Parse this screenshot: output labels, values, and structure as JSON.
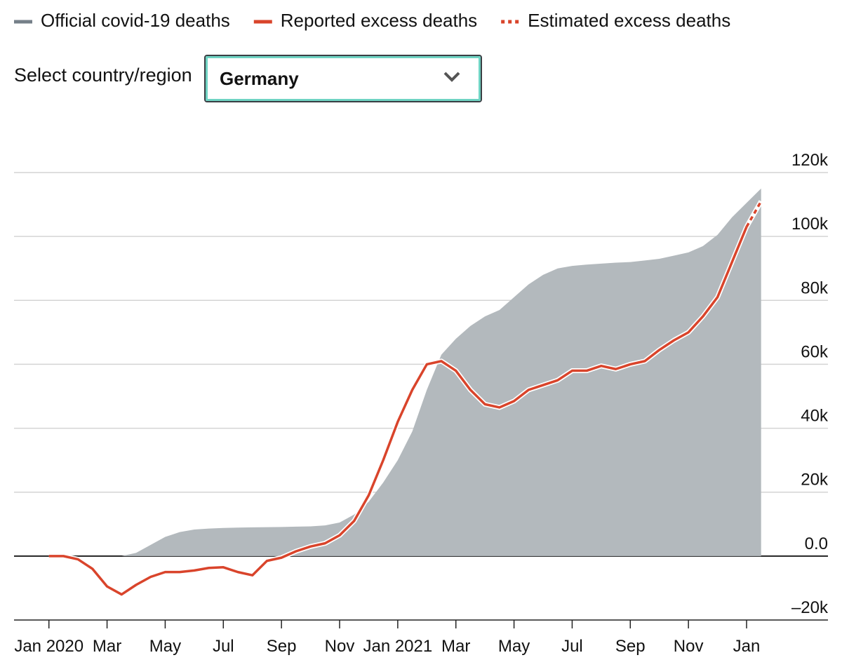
{
  "chart_data": {
    "type": "area-line",
    "select_label": "Select country/region",
    "select_value": "Germany",
    "x": [
      0,
      0.5,
      1,
      1.5,
      2,
      2.5,
      3,
      3.5,
      4,
      4.5,
      5,
      5.5,
      6,
      6.5,
      7,
      7.5,
      8,
      8.5,
      9,
      9.5,
      10,
      10.5,
      11,
      11.5,
      12,
      12.5,
      13,
      13.5,
      14,
      14.5,
      15,
      15.5,
      16,
      16.5,
      17,
      17.5,
      18,
      18.5,
      19,
      19.5,
      20,
      20.5,
      21,
      21.5,
      22,
      22.5,
      23,
      23.5,
      24,
      24.5
    ],
    "series": [
      {
        "name": "Official covid-19 deaths",
        "color": "#b3b9bd",
        "legend_color": "#758089",
        "kind": "area",
        "values": [
          null,
          null,
          null,
          null,
          null,
          0,
          1000,
          3500,
          6000,
          7500,
          8300,
          8600,
          8800,
          8900,
          9000,
          9050,
          9100,
          9200,
          9300,
          9600,
          10500,
          13000,
          17000,
          23000,
          30000,
          39000,
          52000,
          63000,
          68000,
          72000,
          75000,
          77000,
          81000,
          85000,
          88000,
          90000,
          90800,
          91200,
          91500,
          91800,
          92000,
          92500,
          93000,
          94000,
          95000,
          97000,
          100500,
          106000,
          110500,
          115000
        ]
      },
      {
        "name": "Reported excess deaths",
        "color": "#d9442b",
        "kind": "line",
        "dash": false,
        "values": [
          0,
          0,
          -1000,
          -4000,
          -9500,
          -12000,
          -9000,
          -6500,
          -5000,
          -5000,
          -4500,
          -3700,
          -3500,
          -5000,
          -6000,
          -1500,
          -500,
          1500,
          3000,
          4000,
          6500,
          11000,
          19000,
          30000,
          42000,
          52000,
          60000,
          61000,
          58000,
          52000,
          47500,
          46500,
          48500,
          52000,
          53500,
          55000,
          58000,
          58000,
          59500,
          58500,
          60000,
          61000,
          64500,
          67500,
          70000,
          75000,
          81000,
          92000,
          103000,
          null
        ]
      },
      {
        "name": "Estimated excess deaths",
        "color": "#d9442b",
        "kind": "line",
        "dash": true,
        "values": [
          null,
          null,
          null,
          null,
          null,
          null,
          null,
          null,
          null,
          null,
          null,
          null,
          null,
          null,
          null,
          null,
          null,
          null,
          null,
          null,
          null,
          null,
          null,
          null,
          null,
          null,
          null,
          null,
          null,
          null,
          null,
          null,
          null,
          null,
          null,
          null,
          null,
          null,
          null,
          null,
          null,
          null,
          null,
          null,
          null,
          null,
          null,
          null,
          103000,
          111000
        ]
      }
    ],
    "xlim": [
      -1.2,
      26.8
    ],
    "xticks": [
      {
        "value": 0,
        "label": "Jan 2020"
      },
      {
        "value": 2,
        "label": "Mar"
      },
      {
        "value": 4,
        "label": "May"
      },
      {
        "value": 6,
        "label": "Jul"
      },
      {
        "value": 8,
        "label": "Sep"
      },
      {
        "value": 10,
        "label": "Nov"
      },
      {
        "value": 12,
        "label": "Jan 2021"
      },
      {
        "value": 14,
        "label": "Mar"
      },
      {
        "value": 16,
        "label": "May"
      },
      {
        "value": 18,
        "label": "Jul"
      },
      {
        "value": 20,
        "label": "Sep"
      },
      {
        "value": 22,
        "label": "Nov"
      },
      {
        "value": 24,
        "label": "Jan"
      }
    ],
    "ylim": [
      -20000,
      120000
    ],
    "yticks": [
      {
        "value": -20000,
        "label": "–20k"
      },
      {
        "value": 0,
        "label": "0.0"
      },
      {
        "value": 20000,
        "label": "20k"
      },
      {
        "value": 40000,
        "label": "40k"
      },
      {
        "value": 60000,
        "label": "60k"
      },
      {
        "value": 80000,
        "label": "80k"
      },
      {
        "value": 100000,
        "label": "100k"
      },
      {
        "value": 120000,
        "label": "120k"
      }
    ],
    "grid": true
  }
}
